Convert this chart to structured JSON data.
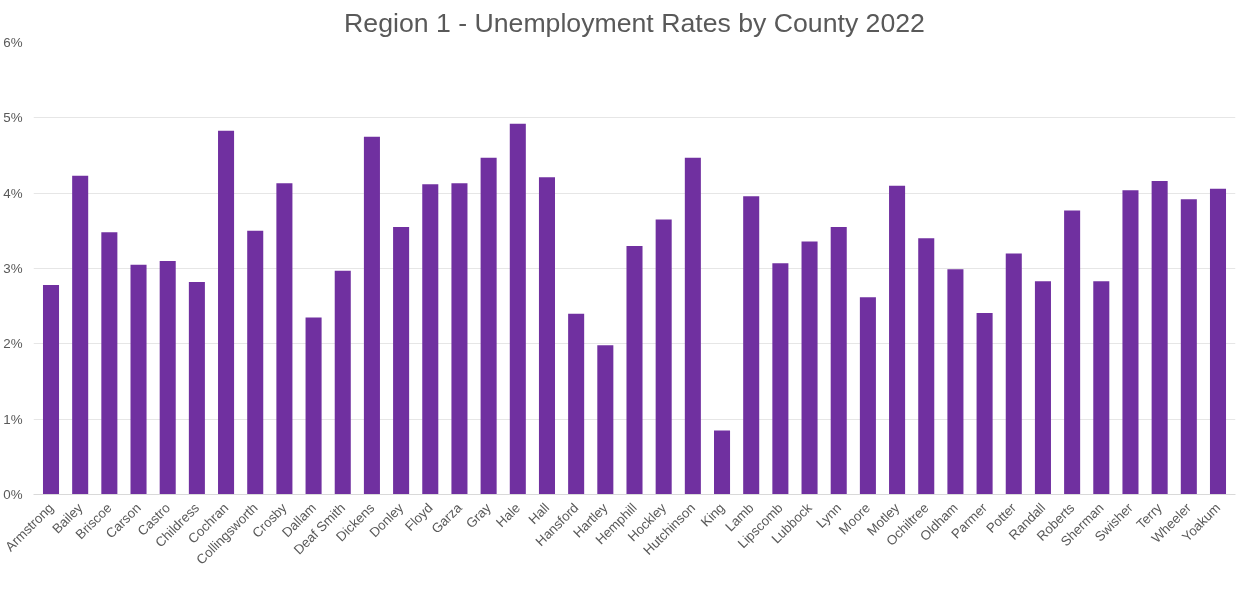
{
  "chart_data": {
    "type": "bar",
    "title": "Region 1 - Unemployment Rates by County 2022",
    "categories": [
      "Armstrong",
      "Bailey",
      "Briscoe",
      "Carson",
      "Castro",
      "Childress",
      "Cochran",
      "Collingsworth",
      "Crosby",
      "Dallam",
      "Deaf Smith",
      "Dickens",
      "Donley",
      "Floyd",
      "Garza",
      "Gray",
      "Hale",
      "Hall",
      "Hansford",
      "Hartley",
      "Hemphill",
      "Hockley",
      "Hutchinson",
      "King",
      "Lamb",
      "Lipscomb",
      "Lubbock",
      "Lynn",
      "Moore",
      "Motley",
      "Ochiltree",
      "Oldham",
      "Parmer",
      "Potter",
      "Randall",
      "Roberts",
      "Sherman",
      "Swisher",
      "Terry",
      "Wheeler",
      "Yoakum"
    ],
    "values": [
      2.78,
      4.23,
      3.48,
      3.05,
      3.1,
      2.82,
      4.83,
      3.5,
      4.13,
      2.35,
      2.97,
      4.75,
      3.55,
      4.12,
      4.13,
      4.47,
      4.92,
      4.21,
      2.4,
      1.98,
      3.3,
      3.65,
      4.47,
      0.85,
      3.96,
      3.07,
      3.36,
      3.55,
      2.62,
      4.1,
      3.4,
      2.99,
      2.41,
      3.2,
      2.83,
      3.77,
      2.83,
      4.04,
      4.16,
      3.92,
      4.06
    ],
    "color": "#7030a0",
    "ylim": [
      0,
      6
    ],
    "yticks": [
      {
        "value": 0,
        "label": "0%"
      },
      {
        "value": 1,
        "label": "1%"
      },
      {
        "value": 2,
        "label": "2%"
      },
      {
        "value": 3,
        "label": "3%"
      },
      {
        "value": 4,
        "label": "4%"
      },
      {
        "value": 5,
        "label": "5%"
      },
      {
        "value": 6,
        "label": "6%"
      }
    ],
    "grid": "y"
  }
}
